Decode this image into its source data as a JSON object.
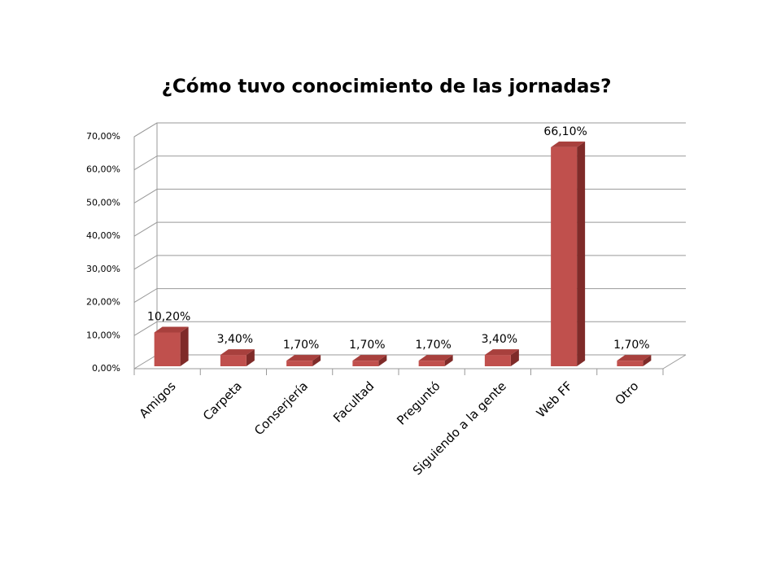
{
  "chart_data": {
    "type": "bar3d",
    "title": "¿Cómo tuvo conocimiento de las jornadas?",
    "categories": [
      "Amigos",
      "Carpeta",
      "Conserjería",
      "Facultad",
      "Preguntó",
      "Siguiendo a la gente",
      "Web FF",
      "Otro"
    ],
    "values": [
      10.2,
      3.4,
      1.7,
      1.7,
      1.7,
      3.4,
      66.1,
      1.7
    ],
    "value_labels": [
      "10,20%",
      "3,40%",
      "1,70%",
      "1,70%",
      "1,70%",
      "3,40%",
      "66,10%",
      "1,70%"
    ],
    "color": "#c0504d",
    "ylim": [
      0,
      70
    ],
    "yticks": [
      {
        "value": 0,
        "label": "0,00%"
      },
      {
        "value": 10,
        "label": "10,00%"
      },
      {
        "value": 20,
        "label": "20,00%"
      },
      {
        "value": 30,
        "label": "30,00%"
      },
      {
        "value": 40,
        "label": "40,00%"
      },
      {
        "value": 50,
        "label": "50,00%"
      },
      {
        "value": 60,
        "label": "60,00%"
      },
      {
        "value": 70,
        "label": "70,00%"
      }
    ],
    "grid": true
  }
}
